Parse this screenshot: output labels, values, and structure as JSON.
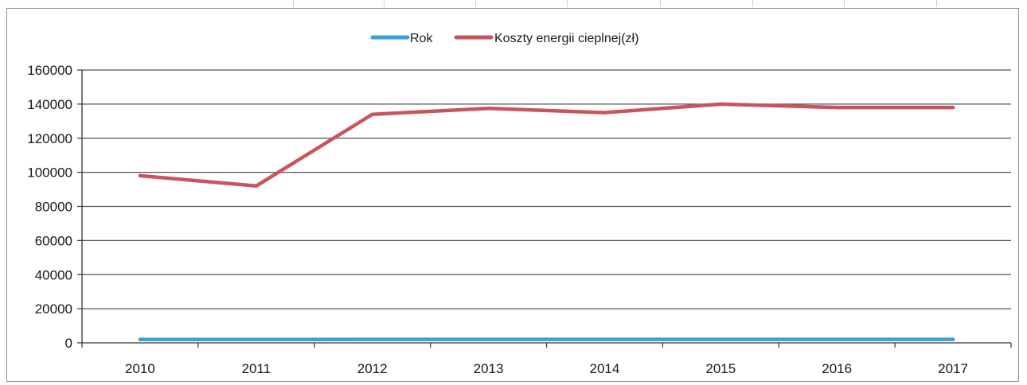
{
  "chart_data": {
    "type": "line",
    "title": "",
    "xlabel": "",
    "ylabel": "",
    "categories": [
      "2010",
      "2011",
      "2012",
      "2013",
      "2014",
      "2015",
      "2016",
      "2017"
    ],
    "ylim": [
      0,
      160000
    ],
    "yticks": [
      "0",
      "20000",
      "40000",
      "60000",
      "80000",
      "100000",
      "120000",
      "140000",
      "160000"
    ],
    "grid": true,
    "legend": "top-center",
    "series": [
      {
        "name": "Rok",
        "color": "#3aa0d8",
        "values": [
          2010,
          2011,
          2012,
          2013,
          2014,
          2015,
          2016,
          2017
        ]
      },
      {
        "name": "Koszty energii cieplnej(zł)",
        "color": "#c9545e",
        "values": [
          98000,
          92000,
          134000,
          137500,
          135000,
          140000,
          138000,
          138000
        ]
      }
    ]
  }
}
